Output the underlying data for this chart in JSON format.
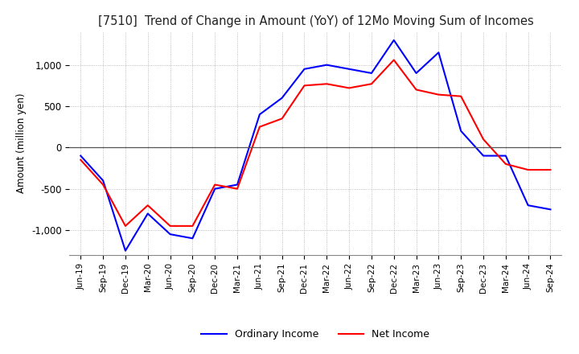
{
  "title": "[7510]  Trend of Change in Amount (YoY) of 12Mo Moving Sum of Incomes",
  "ylabel": "Amount (million yen)",
  "ordinary_income_color": "#0000FF",
  "net_income_color": "#FF0000",
  "background_color": "#FFFFFF",
  "grid_color": "#AAAAAA",
  "ylim": [
    -1300,
    1400
  ],
  "yticks": [
    -1000,
    -500,
    0,
    500,
    1000
  ],
  "x_labels": [
    "Jun-19",
    "Sep-19",
    "Dec-19",
    "Mar-20",
    "Jun-20",
    "Sep-20",
    "Dec-20",
    "Mar-21",
    "Jun-21",
    "Sep-21",
    "Dec-21",
    "Mar-22",
    "Jun-22",
    "Sep-22",
    "Dec-22",
    "Mar-23",
    "Jun-23",
    "Sep-23",
    "Dec-23",
    "Mar-24",
    "Jun-24",
    "Sep-24"
  ],
  "ordinary_income": [
    -100,
    -400,
    -1250,
    -800,
    -1050,
    -1100,
    -500,
    -450,
    400,
    600,
    950,
    1000,
    950,
    900,
    1300,
    900,
    1150,
    200,
    -100,
    -100,
    -700,
    -750
  ],
  "net_income": [
    -150,
    -450,
    -950,
    -700,
    -950,
    -950,
    -450,
    -500,
    250,
    350,
    750,
    770,
    720,
    770,
    1060,
    700,
    640,
    620,
    100,
    -200,
    -270,
    -270
  ]
}
